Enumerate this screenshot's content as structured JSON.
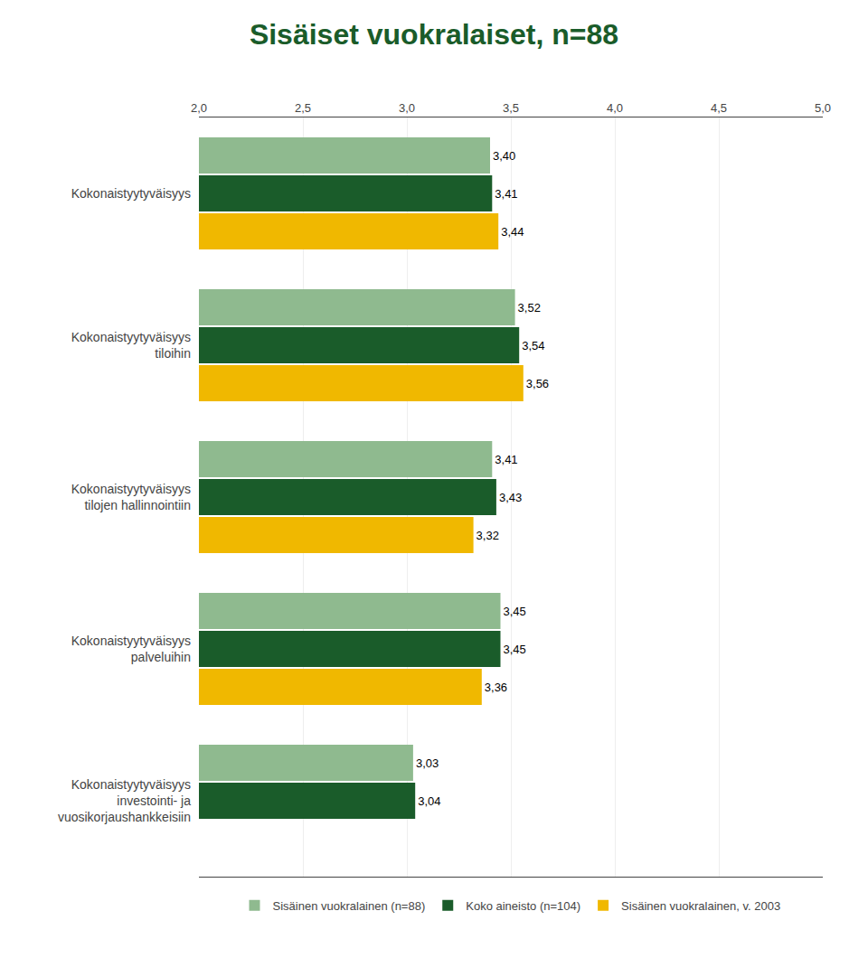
{
  "chart_data": {
    "type": "bar",
    "orientation": "horizontal",
    "title": "Sisäiset vuokralaiset, n=88",
    "categories": [
      "Kokonaistyytyväisyys",
      "Kokonaistyytyväisyys\ntiloihin",
      "Kokonaistyytyväisyys\ntilojen hallinnointiin",
      "Kokonaistyytyväisyys\npalveluihin",
      "Kokonaistyytyväisyys\ninvestointi- ja\nvuosikorjaushankkeisiin"
    ],
    "series": [
      {
        "name": "Sisäinen vuokralainen (n=88)",
        "color": "#8fba8f",
        "values": [
          3.4,
          3.52,
          3.41,
          3.45,
          3.03
        ],
        "value_labels": [
          "3,40",
          "3,52",
          "3,41",
          "3,45",
          "3,03"
        ]
      },
      {
        "name": "Koko aineisto (n=104)",
        "color": "#1a5c2a",
        "values": [
          3.41,
          3.54,
          3.43,
          3.45,
          3.04
        ],
        "value_labels": [
          "3,41",
          "3,54",
          "3,43",
          "3,45",
          "3,04"
        ]
      },
      {
        "name": "Sisäinen vuokralainen, v. 2003",
        "color": "#f0b800",
        "values": [
          3.44,
          3.56,
          3.32,
          3.36,
          null
        ],
        "value_labels": [
          "3,44",
          "3,56",
          "3,32",
          "3,36",
          null
        ]
      }
    ],
    "xlim": [
      2.0,
      5.0
    ],
    "xticks": [
      {
        "value": 2.0,
        "label": "2,0"
      },
      {
        "value": 2.5,
        "label": "2,5"
      },
      {
        "value": 3.0,
        "label": "3,0"
      },
      {
        "value": 3.5,
        "label": "3,5"
      },
      {
        "value": 4.0,
        "label": "4,0"
      },
      {
        "value": 4.5,
        "label": "4,5"
      },
      {
        "value": 5.0,
        "label": "5,0"
      }
    ],
    "grid": true,
    "data_labels": true,
    "legend": "bottom"
  }
}
